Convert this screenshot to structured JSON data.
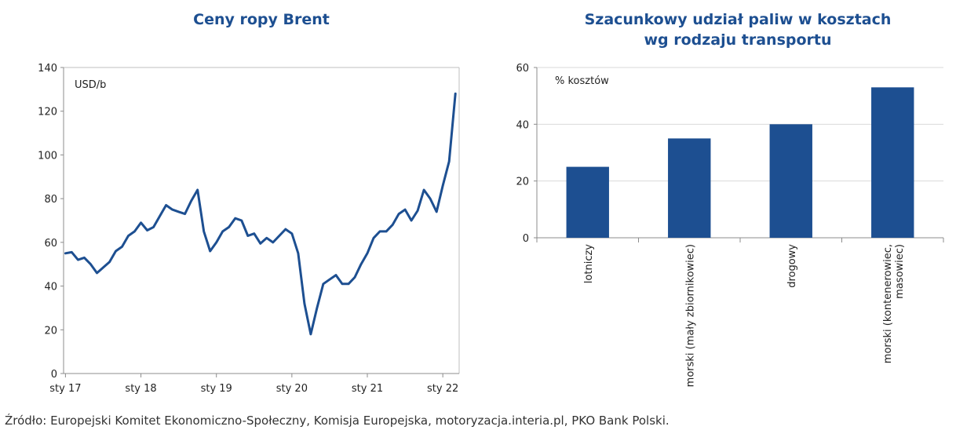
{
  "chart_data": [
    {
      "type": "line",
      "title": "Ceny ropy Brent",
      "unit_label": "USD/b",
      "ylim": [
        0,
        140
      ],
      "yticks": [
        0,
        20,
        40,
        60,
        80,
        100,
        120,
        140
      ],
      "x_tick_labels": [
        "sty 17",
        "sty 18",
        "sty 19",
        "sty 20",
        "sty 21",
        "sty 22"
      ],
      "series": [
        {
          "color": "#1d4f91",
          "x": [
            "2017-01",
            "2017-02",
            "2017-03",
            "2017-04",
            "2017-05",
            "2017-06",
            "2017-07",
            "2017-08",
            "2017-09",
            "2017-10",
            "2017-11",
            "2017-12",
            "2018-01",
            "2018-02",
            "2018-03",
            "2018-04",
            "2018-05",
            "2018-06",
            "2018-07",
            "2018-08",
            "2018-09",
            "2018-10",
            "2018-11",
            "2018-12",
            "2019-01",
            "2019-02",
            "2019-03",
            "2019-04",
            "2019-05",
            "2019-06",
            "2019-07",
            "2019-08",
            "2019-09",
            "2019-10",
            "2019-11",
            "2019-12",
            "2020-01",
            "2020-02",
            "2020-03",
            "2020-04",
            "2020-05",
            "2020-06",
            "2020-07",
            "2020-08",
            "2020-09",
            "2020-10",
            "2020-11",
            "2020-12",
            "2021-01",
            "2021-02",
            "2021-03",
            "2021-04",
            "2021-05",
            "2021-06",
            "2021-07",
            "2021-08",
            "2021-09",
            "2021-10",
            "2021-11",
            "2021-12",
            "2022-01",
            "2022-02",
            "2022-03"
          ],
          "values": [
            55,
            55.5,
            52,
            53,
            50,
            46,
            48.5,
            51,
            56,
            58,
            63,
            65,
            69,
            65.5,
            67,
            72,
            77,
            75,
            74,
            73,
            79,
            84,
            65,
            56,
            60,
            65,
            67,
            71,
            70,
            63,
            64,
            59.5,
            62,
            60,
            63,
            66,
            64,
            55,
            32,
            18,
            30,
            41,
            43,
            45,
            41,
            41,
            44,
            50,
            55,
            62,
            65,
            65,
            68,
            73,
            75,
            70,
            74.5,
            84,
            80,
            74,
            86,
            97,
            128
          ]
        }
      ]
    },
    {
      "type": "bar",
      "title_lines": [
        "Szacunkowy udział paliw w kosztach",
        "wg rodzaju transportu"
      ],
      "unit_label": "% kosztów",
      "ylim": [
        0,
        60
      ],
      "yticks": [
        0,
        20,
        40,
        60
      ],
      "categories": [
        [
          "lotniczy"
        ],
        [
          "morski (mały zbiornikowiec)"
        ],
        [
          "drogowy"
        ],
        [
          "morski (kontenerowiec,",
          "masowiec)"
        ]
      ],
      "values": [
        25,
        35,
        40,
        53
      ],
      "color": "#1d4f91"
    }
  ],
  "source": "Źródło: Europejski Komitet Ekonomiczno-Społeczny, Komisja Europejska, motoryzacja.interia.pl, PKO Bank Polski."
}
